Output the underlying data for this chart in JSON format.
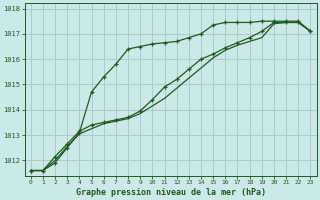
{
  "title": "Graphe pression niveau de la mer (hPa)",
  "bg_color": "#cde8e8",
  "grid_color": "#aacccc",
  "line_color": "#1e5c1e",
  "xlim": [
    -0.5,
    23.5
  ],
  "ylim": [
    1011.4,
    1018.2
  ],
  "yticks": [
    1012,
    1013,
    1014,
    1015,
    1016,
    1017,
    1018
  ],
  "xticks": [
    0,
    1,
    2,
    3,
    4,
    5,
    6,
    7,
    8,
    9,
    10,
    11,
    12,
    13,
    14,
    15,
    16,
    17,
    18,
    19,
    20,
    21,
    22,
    23
  ],
  "series": [
    {
      "y": [
        1011.6,
        1011.6,
        1011.9,
        1012.5,
        1013.1,
        1014.7,
        1015.3,
        1015.8,
        1016.4,
        1016.5,
        1016.6,
        1016.65,
        1016.7,
        1016.85,
        1017.0,
        1017.35,
        1017.45,
        1017.45,
        1017.45,
        1017.5,
        1017.5,
        1017.5,
        1017.5,
        1017.1
      ],
      "marker": true,
      "linestyle": "-"
    },
    {
      "y": [
        1011.6,
        1011.6,
        1012.0,
        1012.55,
        1013.05,
        1013.25,
        1013.45,
        1013.55,
        1013.65,
        1013.85,
        1014.15,
        1014.45,
        1014.85,
        1015.25,
        1015.65,
        1016.05,
        1016.35,
        1016.55,
        1016.7,
        1016.85,
        1017.4,
        1017.45,
        1017.45,
        1017.1
      ],
      "marker": false,
      "linestyle": "-"
    },
    {
      "y": [
        1011.6,
        1011.6,
        1012.15,
        1012.65,
        1013.15,
        1013.4,
        1013.5,
        1013.6,
        1013.7,
        1013.95,
        1014.4,
        1014.9,
        1015.2,
        1015.6,
        1016.0,
        1016.2,
        1016.45,
        1016.65,
        1016.85,
        1017.1,
        1017.45,
        1017.45,
        1017.45,
        1017.1
      ],
      "marker": true,
      "linestyle": "-"
    }
  ]
}
